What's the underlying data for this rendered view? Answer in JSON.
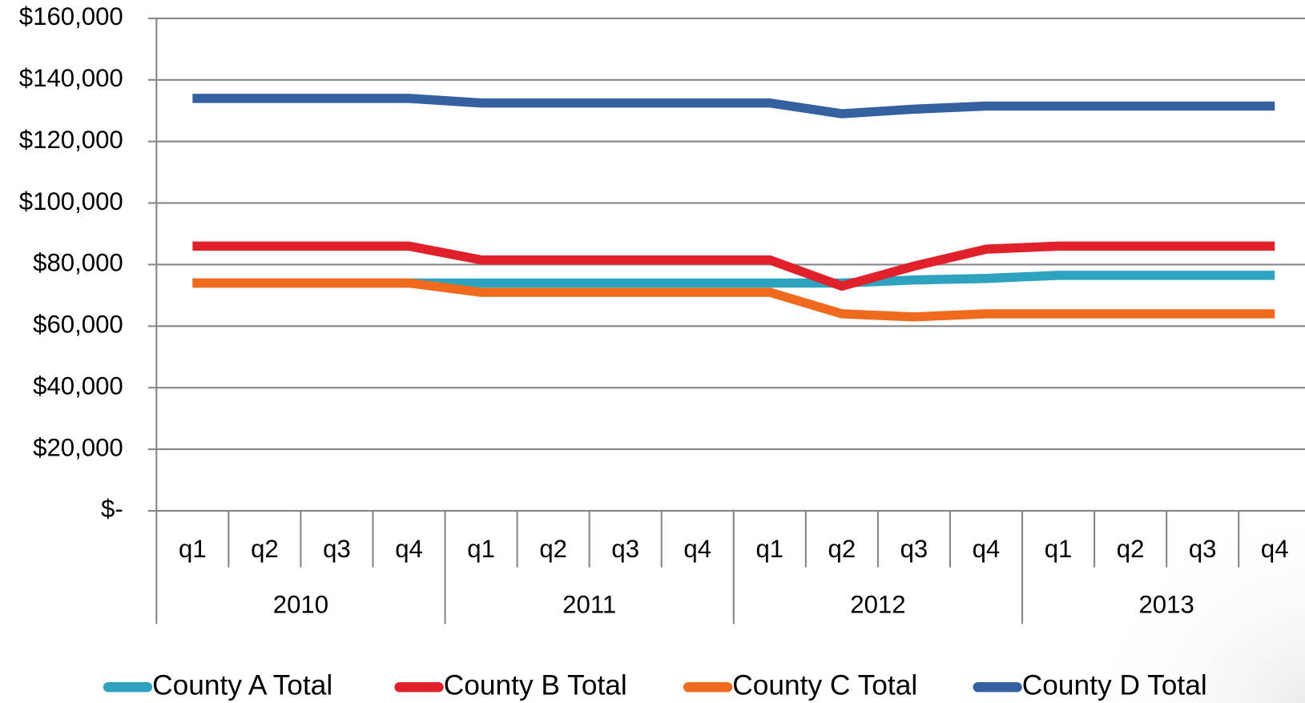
{
  "chart_data": {
    "type": "line",
    "categories": [
      "q1",
      "q2",
      "q3",
      "q4",
      "q1",
      "q2",
      "q3",
      "q4",
      "q1",
      "q2",
      "q3",
      "q4",
      "q1",
      "q2",
      "q3",
      "q4"
    ],
    "category_groups": [
      "2010",
      "2011",
      "2012",
      "2013"
    ],
    "ylim": [
      0,
      160000
    ],
    "yticks": [
      {
        "value": 0,
        "label": "$-"
      },
      {
        "value": 20000,
        "label": "$20,000"
      },
      {
        "value": 40000,
        "label": "$40,000"
      },
      {
        "value": 60000,
        "label": "$60,000"
      },
      {
        "value": 80000,
        "label": "$80,000"
      },
      {
        "value": 100000,
        "label": "$100,000"
      },
      {
        "value": 120000,
        "label": "$120,000"
      },
      {
        "value": 140000,
        "label": "$140,000"
      },
      {
        "value": 160000,
        "label": "$160,000"
      }
    ],
    "grid": true,
    "legend": "bottom",
    "series": [
      {
        "name": "County A Total",
        "color": "#2ea3c0",
        "values": [
          74000,
          74000,
          74000,
          74000,
          74000,
          74000,
          74000,
          74000,
          74000,
          74000,
          75000,
          75500,
          76500,
          76500,
          76500,
          76500
        ]
      },
      {
        "name": "County B Total",
        "color": "#e0202a",
        "values": [
          86000,
          86000,
          86000,
          86000,
          81500,
          81500,
          81500,
          81500,
          81500,
          73000,
          79500,
          85000,
          86000,
          86000,
          86000,
          86000
        ]
      },
      {
        "name": "County C Total",
        "color": "#f06a1e",
        "values": [
          74000,
          74000,
          74000,
          74000,
          71000,
          71000,
          71000,
          71000,
          71000,
          64000,
          63000,
          64000,
          64000,
          64000,
          64000,
          64000
        ]
      },
      {
        "name": "County D Total",
        "color": "#3560a0",
        "values": [
          134000,
          134000,
          134000,
          134000,
          132500,
          132500,
          132500,
          132500,
          132500,
          129000,
          130500,
          131500,
          131500,
          131500,
          131500,
          131500
        ]
      }
    ]
  }
}
